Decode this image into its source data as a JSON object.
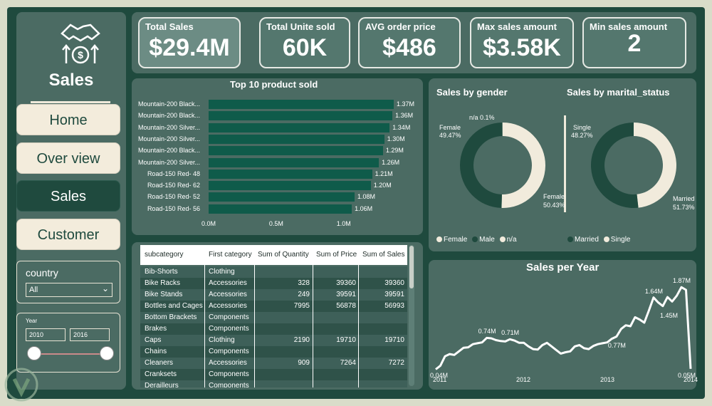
{
  "colors": {
    "frame": "#1f4a3e",
    "panel": "#4b6b63",
    "accent": "#0f5b4a",
    "cream": "#f3ecdc"
  },
  "sidebar": {
    "title": "Sales",
    "logo_icon": "handshake-dollar-icon",
    "nav": [
      {
        "label": "Home",
        "active": false
      },
      {
        "label": "Over view",
        "active": false
      },
      {
        "label": "Sales",
        "active": true
      },
      {
        "label": "Customer",
        "active": false
      }
    ],
    "country_filter": {
      "title": "country",
      "value": "All"
    },
    "year_filter": {
      "title": "Year",
      "from": "2010",
      "to": "2016"
    }
  },
  "kpis": [
    {
      "label": "Total Sales",
      "value": "$29.4M"
    },
    {
      "label": "Total Unite sold",
      "value": "60K"
    },
    {
      "label": "AVG order price",
      "value": "$486"
    },
    {
      "label": "Max sales amount",
      "value": "$3.58K"
    },
    {
      "label": "Min sales amount",
      "value": "2"
    }
  ],
  "chart_data": [
    {
      "type": "bar",
      "title": "Top 10 product sold",
      "categories": [
        "Mountain-200 Black...",
        "Mountain-200 Black...",
        "Mountain-200 Silver...",
        "Mountain-200 Silver...",
        "Mountain-200 Black...",
        "Mountain-200 Silver...",
        "Road-150 Red- 48",
        "Road-150 Red- 62",
        "Road-150 Red- 52",
        "Road-150 Red- 56"
      ],
      "values": [
        1.37,
        1.36,
        1.34,
        1.3,
        1.29,
        1.26,
        1.21,
        1.2,
        1.08,
        1.06
      ],
      "value_labels": [
        "1.37M",
        "1.36M",
        "1.34M",
        "1.30M",
        "1.29M",
        "1.26M",
        "1.21M",
        "1.20M",
        "1.08M",
        "1.06M"
      ],
      "x_ticks": [
        "0.0M",
        "0.5M",
        "1.0M"
      ],
      "xlim": [
        0,
        1.4
      ]
    },
    {
      "type": "pie",
      "title": "Sales by gender",
      "series": [
        {
          "name": "Female",
          "value": 50.43,
          "label": "Female\n50.43%",
          "color": "#f1ebdc"
        },
        {
          "name": "Male",
          "value": 49.47,
          "label": "Male\n49.47%",
          "color": "#1f4a3e"
        },
        {
          "name": "n/a",
          "value": 0.1,
          "label": "n/a 0.1%",
          "color": "#f1ebdc"
        }
      ],
      "legend": [
        "Female",
        "Male",
        "n/a"
      ]
    },
    {
      "type": "pie",
      "title": "Sales by marital_status",
      "series": [
        {
          "name": "Married",
          "value": 51.73,
          "label": "Married\n51.73%",
          "color": "#1f4a3e"
        },
        {
          "name": "Single",
          "value": 48.27,
          "label": "Single\n48.27%",
          "color": "#f1ebdc"
        }
      ],
      "legend": [
        "Married",
        "Single"
      ]
    },
    {
      "type": "line",
      "title": "Sales per Year",
      "x_ticks": [
        "2011",
        "2012",
        "2013",
        "2014"
      ],
      "values": [
        0.04,
        0.12,
        0.33,
        0.38,
        0.36,
        0.44,
        0.52,
        0.53,
        0.6,
        0.62,
        0.64,
        0.74,
        0.73,
        0.69,
        0.67,
        0.66,
        0.71,
        0.68,
        0.63,
        0.63,
        0.55,
        0.49,
        0.48,
        0.58,
        0.63,
        0.55,
        0.47,
        0.39,
        0.42,
        0.44,
        0.55,
        0.58,
        0.51,
        0.49,
        0.56,
        0.6,
        0.62,
        0.64,
        0.72,
        0.77,
        0.94,
        1.02,
        1.0,
        1.2,
        1.15,
        1.08,
        1.35,
        1.64,
        1.53,
        1.45,
        1.65,
        1.55,
        1.68,
        1.87,
        1.81,
        0.05
      ],
      "annotations": [
        {
          "text": "0.04M",
          "index": 0
        },
        {
          "text": "0.74M",
          "index": 11
        },
        {
          "text": "0.71M",
          "index": 16
        },
        {
          "text": "0.77M",
          "index": 39
        },
        {
          "text": "1.64M",
          "index": 47
        },
        {
          "text": "1.45M",
          "index": 49
        },
        {
          "text": "1.87M",
          "index": 53
        },
        {
          "text": "0.05M",
          "index": 55
        }
      ],
      "ylim": [
        0,
        2
      ]
    }
  ],
  "table": {
    "columns": [
      "subcategory",
      "First category",
      "Sum of Quantity",
      "Sum of Price",
      "Sum of Sales"
    ],
    "rows": [
      [
        "Bib-Shorts",
        "Clothing",
        "",
        "",
        ""
      ],
      [
        "Bike Racks",
        "Accessories",
        "328",
        "39360",
        "39360"
      ],
      [
        "Bike Stands",
        "Accessories",
        "249",
        "39591",
        "39591"
      ],
      [
        "Bottles and Cages",
        "Accessories",
        "7995",
        "56878",
        "56993"
      ],
      [
        "Bottom Brackets",
        "Components",
        "",
        "",
        ""
      ],
      [
        "Brakes",
        "Components",
        "",
        "",
        ""
      ],
      [
        "Caps",
        "Clothing",
        "2190",
        "19710",
        "19710"
      ],
      [
        "Chains",
        "Components",
        "",
        "",
        ""
      ],
      [
        "Cleaners",
        "Accessories",
        "909",
        "7264",
        "7272"
      ],
      [
        "Cranksets",
        "Components",
        "",
        "",
        ""
      ],
      [
        "Derailleurs",
        "Components",
        "",
        "",
        ""
      ]
    ]
  }
}
